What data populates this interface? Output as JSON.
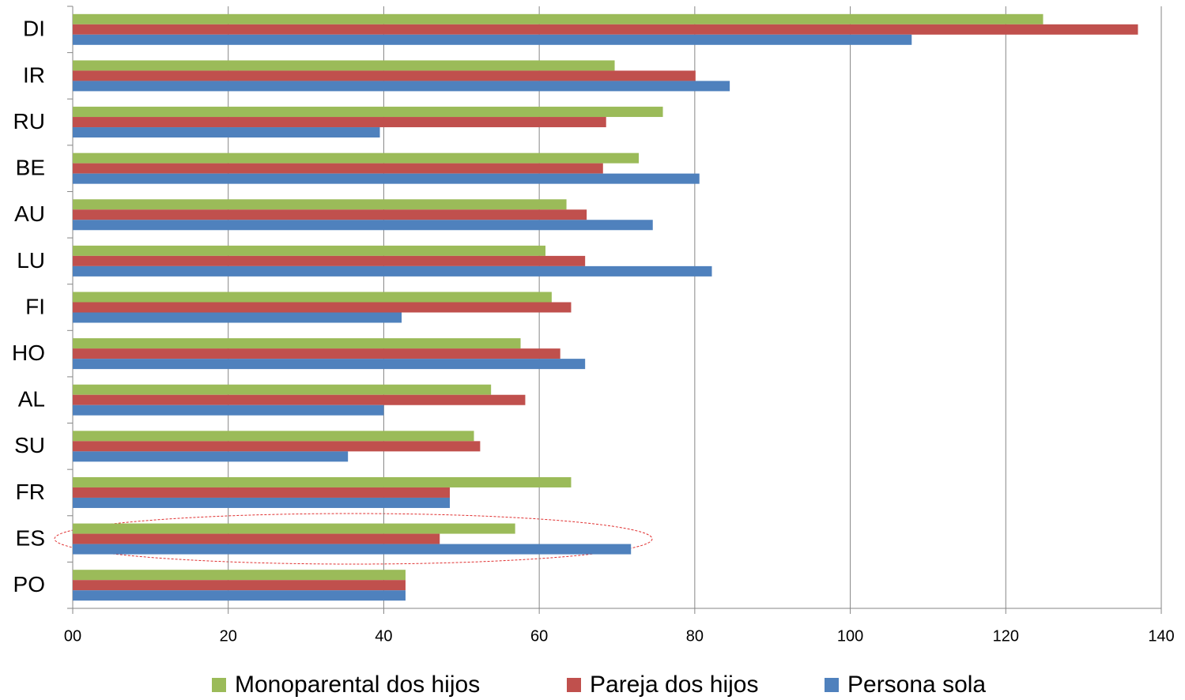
{
  "chart_data": {
    "type": "barh",
    "categories": [
      "DI",
      "IR",
      "RU",
      "BE",
      "AU",
      "LU",
      "FI",
      "HO",
      "AL",
      "SU",
      "FR",
      "ES",
      "PO"
    ],
    "series": [
      {
        "name": "Monoparental dos hijos",
        "color": "#9bbb59",
        "values": [
          124.8,
          69.7,
          75.9,
          72.8,
          63.5,
          60.8,
          61.6,
          57.6,
          53.8,
          51.6,
          64.1,
          56.9,
          42.8
        ]
      },
      {
        "name": "Pareja dos hijos",
        "color": "#c0504d",
        "values": [
          137,
          80.1,
          68.6,
          68.2,
          66.1,
          65.9,
          64.1,
          62.7,
          58.2,
          52.4,
          48.5,
          47.2,
          42.8
        ]
      },
      {
        "name": "Persona sola",
        "color": "#4f81bd",
        "values": [
          107.9,
          84.5,
          39.5,
          80.6,
          74.6,
          82.2,
          42.3,
          65.9,
          40.0,
          35.4,
          48.5,
          71.8,
          42.8
        ]
      }
    ],
    "xlim": [
      0,
      140
    ],
    "xticks": [
      {
        "value": 0,
        "label": "00"
      },
      20,
      40,
      60,
      80,
      100,
      120,
      140
    ],
    "grid": true,
    "legend": "bottom"
  }
}
